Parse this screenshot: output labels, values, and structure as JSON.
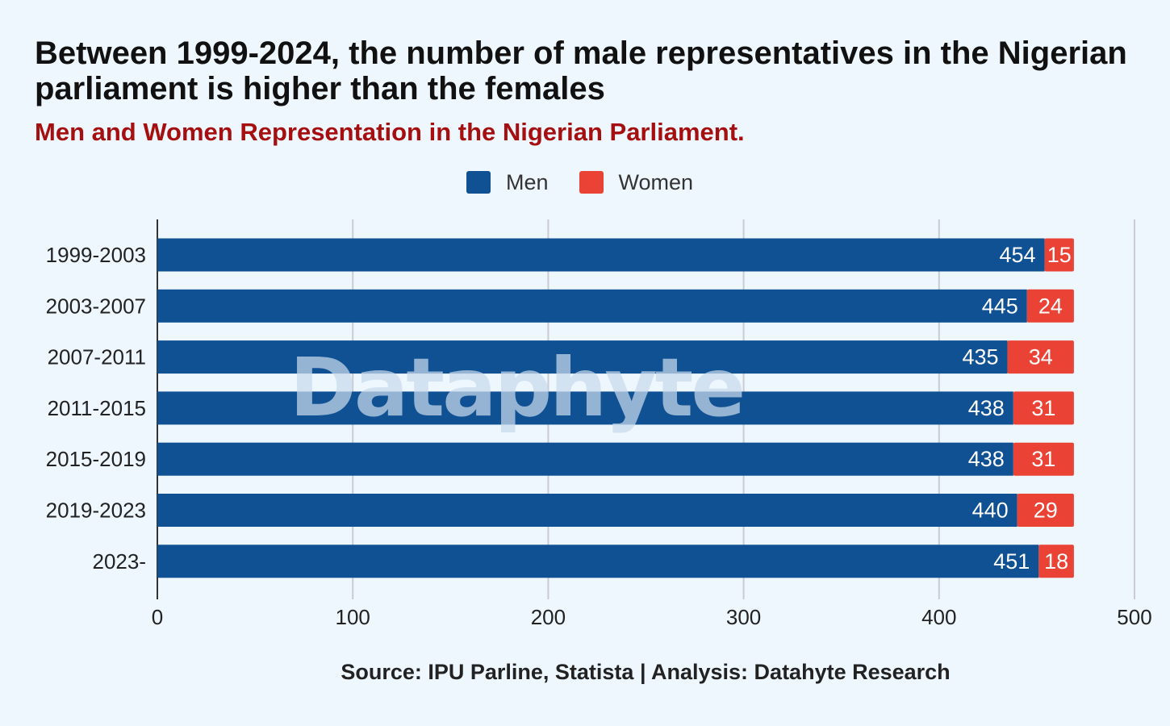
{
  "title": "Between 1999-2024, the number of male representatives in the Nigerian parliament is higher than the females",
  "subtitle": "Men and Women Representation in the Nigerian Parliament.",
  "source": "Source: IPU Parline, Statista | Analysis: Datahyte Research",
  "watermark": "Dataphyte",
  "colors": {
    "men": "#0f5193",
    "women": "#ea4335",
    "background": "#eef6fe"
  },
  "chart_data": {
    "type": "bar",
    "orientation": "horizontal",
    "stacked": true,
    "categories": [
      "1999-2003",
      "2003-2007",
      "2007-2011",
      "2011-2015",
      "2015-2019",
      "2019-2023",
      "2023-"
    ],
    "series": [
      {
        "name": "Men",
        "values": [
          454,
          445,
          435,
          438,
          438,
          440,
          451
        ]
      },
      {
        "name": "Women",
        "values": [
          15,
          24,
          34,
          31,
          31,
          29,
          18
        ]
      }
    ],
    "xlim": [
      0,
      500
    ],
    "xticks": [
      0,
      100,
      200,
      300,
      400,
      500
    ],
    "grid": true,
    "legend_position": "top-center"
  }
}
